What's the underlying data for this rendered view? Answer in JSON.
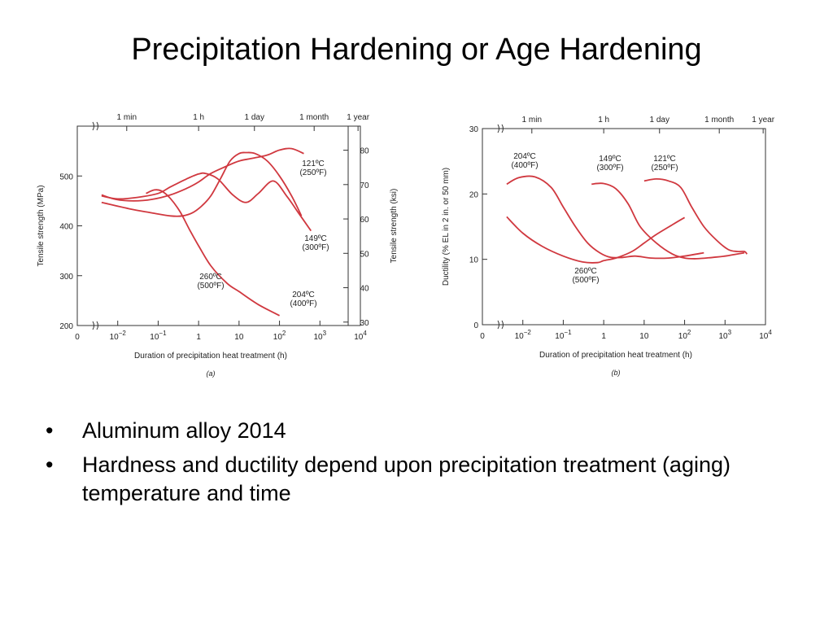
{
  "slide": {
    "title": "Precipitation Hardening or Age Hardening",
    "bullet_glyph": "•",
    "bullets": [
      "Aluminum alloy 2014",
      "Hardness and ductility depend upon precipitation treatment (aging) temperature and time"
    ]
  },
  "chart_data": [
    {
      "type": "line",
      "caption": "(a)",
      "xlabel": "Duration of precipitation heat treatment (h)",
      "xscale": "log",
      "xlim": [
        0.001,
        10000
      ],
      "x_ticks": [
        {
          "value": 0.001,
          "base": "0",
          "exp": ""
        },
        {
          "value": 0.01,
          "base": "10",
          "exp": "−2"
        },
        {
          "value": 0.1,
          "base": "10",
          "exp": "−1"
        },
        {
          "value": 1,
          "base": "1",
          "exp": ""
        },
        {
          "value": 10,
          "base": "10",
          "exp": ""
        },
        {
          "value": 100,
          "base": "10",
          "exp": "2"
        },
        {
          "value": 1000,
          "base": "10",
          "exp": "3"
        },
        {
          "value": 10000,
          "base": "10",
          "exp": "4"
        }
      ],
      "top_time_ticks": [
        {
          "value": 0.0167,
          "label": "1 min"
        },
        {
          "value": 1,
          "label": "1 h"
        },
        {
          "value": 24,
          "label": "1 day"
        },
        {
          "value": 720,
          "label": "1 month"
        },
        {
          "value": 8760,
          "label": "1 year"
        }
      ],
      "ylabel": "Tensile strength (MPa)",
      "ylim": [
        200,
        600
      ],
      "yticks": [
        200,
        300,
        400,
        500
      ],
      "ylabel_right": "Tensile strength (ksi)",
      "ylim_right": [
        29,
        87
      ],
      "yticks_right": [
        30,
        40,
        50,
        60,
        70,
        80
      ],
      "grid": false,
      "series": [
        {
          "name": "121ºC\n(250ºF)",
          "x": [
            0.004,
            0.009,
            0.025,
            0.07,
            0.2,
            0.5,
            1,
            2,
            5,
            10,
            20,
            50,
            100,
            200,
            400
          ],
          "y": [
            462,
            453,
            450,
            453,
            462,
            475,
            488,
            505,
            520,
            530,
            535,
            542,
            552,
            555,
            545
          ]
        },
        {
          "name": "149ºC\n(300ºF)",
          "x": [
            0.004,
            0.01,
            0.03,
            0.1,
            0.2,
            0.5,
            1,
            1.5,
            3,
            7,
            15,
            30,
            70,
            150,
            300,
            600
          ],
          "y": [
            460,
            454,
            457,
            465,
            478,
            494,
            504,
            505,
            494,
            462,
            447,
            465,
            490,
            460,
            425,
            390
          ]
        },
        {
          "name": "204ºC\n(400ºF)",
          "x": [
            0.004,
            0.02,
            0.07,
            0.2,
            0.4,
            0.7,
            1.2,
            2,
            3.5,
            6,
            10,
            15,
            25,
            50,
            100,
            200,
            350
          ],
          "y": [
            447,
            434,
            426,
            420,
            420,
            426,
            440,
            460,
            495,
            530,
            545,
            547,
            545,
            530,
            500,
            460,
            420
          ]
        },
        {
          "name": "260ºC\n(500ºF)",
          "x": [
            0.05,
            0.08,
            0.12,
            0.2,
            0.35,
            0.6,
            1,
            2,
            5,
            10,
            30,
            100
          ],
          "y": [
            465,
            472,
            470,
            455,
            428,
            392,
            360,
            320,
            285,
            268,
            242,
            220
          ]
        }
      ]
    },
    {
      "type": "line",
      "caption": "(b)",
      "xlabel": "Duration of precipitation heat treatment (h)",
      "xscale": "log",
      "xlim": [
        0.001,
        10000
      ],
      "x_ticks": [
        {
          "value": 0.001,
          "base": "0",
          "exp": ""
        },
        {
          "value": 0.01,
          "base": "10",
          "exp": "−2"
        },
        {
          "value": 0.1,
          "base": "10",
          "exp": "−1"
        },
        {
          "value": 1,
          "base": "1",
          "exp": ""
        },
        {
          "value": 10,
          "base": "10",
          "exp": ""
        },
        {
          "value": 100,
          "base": "10",
          "exp": "2"
        },
        {
          "value": 1000,
          "base": "10",
          "exp": "3"
        },
        {
          "value": 10000,
          "base": "10",
          "exp": "4"
        }
      ],
      "top_time_ticks": [
        {
          "value": 0.0167,
          "label": "1 min"
        },
        {
          "value": 1,
          "label": "1 h"
        },
        {
          "value": 24,
          "label": "1 day"
        },
        {
          "value": 720,
          "label": "1 month"
        },
        {
          "value": 8760,
          "label": "1 year"
        }
      ],
      "ylabel": "Ductility (% EL in 2 in. or 50 mm)",
      "ylim": [
        0,
        30
      ],
      "yticks": [
        0,
        10,
        20,
        30
      ],
      "grid": false,
      "series": [
        {
          "name": "204ºC\n(400ºF)",
          "x": [
            0.004,
            0.008,
            0.02,
            0.05,
            0.1,
            0.2,
            0.4,
            0.8,
            1.5,
            3,
            6,
            15,
            40,
            100,
            300
          ],
          "y": [
            21.5,
            22.5,
            22.6,
            21,
            18,
            15,
            12.5,
            11,
            10.3,
            10.3,
            10.5,
            10.2,
            10.2,
            10.5,
            11
          ]
        },
        {
          "name": "149ºC\n(300ºF)",
          "x": [
            0.5,
            1,
            2,
            4,
            8,
            20,
            50,
            100,
            200,
            500,
            1000,
            3000
          ],
          "y": [
            21.5,
            21.6,
            20.8,
            18.5,
            15,
            12.5,
            10.8,
            10.2,
            10.1,
            10.3,
            10.5,
            11
          ]
        },
        {
          "name": "121ºC\n(250ºF)",
          "x": [
            10,
            20,
            40,
            80,
            150,
            300,
            600,
            1200,
            2000,
            3000,
            3500
          ],
          "y": [
            22,
            22.3,
            22,
            21,
            18,
            15,
            13,
            11.5,
            11.2,
            11.2,
            10.8
          ]
        },
        {
          "name": "260ºC\n(500ºF)",
          "x": [
            0.004,
            0.01,
            0.03,
            0.1,
            0.3,
            0.7,
            1,
            2,
            5,
            10,
            20,
            50,
            100
          ],
          "y": [
            16.5,
            14,
            12,
            10.5,
            9.6,
            9.5,
            9.8,
            10.2,
            11.2,
            12.5,
            13.8,
            15.3,
            16.4
          ]
        }
      ]
    }
  ]
}
